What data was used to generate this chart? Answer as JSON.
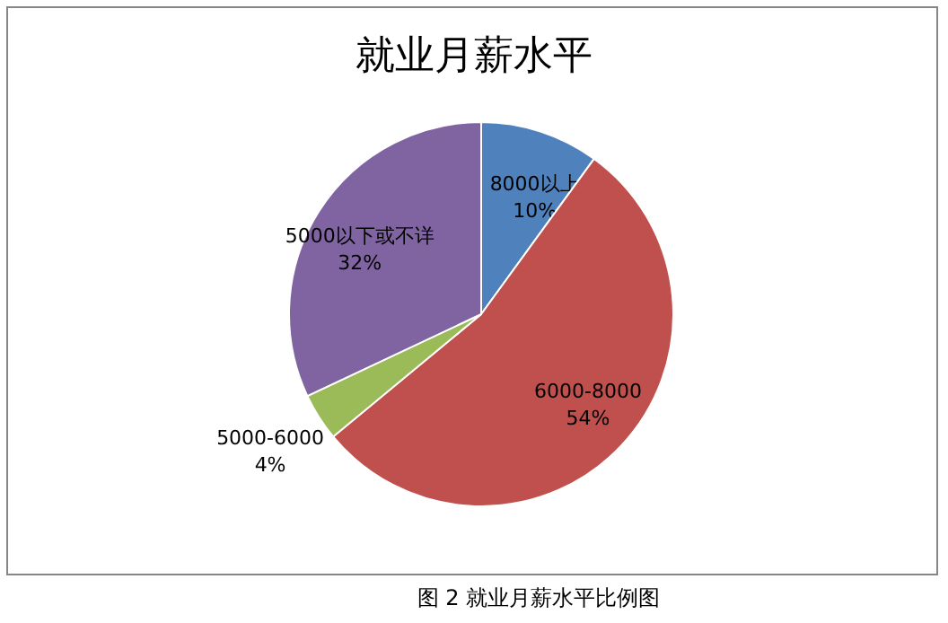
{
  "chart_data": {
    "type": "pie",
    "title": "就业月薪水平",
    "categories": [
      "8000以上",
      "6000-8000",
      "5000-6000",
      "5000以下或不详"
    ],
    "values": [
      10,
      54,
      4,
      32
    ],
    "colors": [
      "#4f81bd",
      "#c0504d",
      "#9bbb59",
      "#8064a2"
    ],
    "value_labels": [
      "10%",
      "54%",
      "4%",
      "32%"
    ],
    "legend": false,
    "annotations": [
      "图 2 就业月薪水平比例图"
    ]
  }
}
